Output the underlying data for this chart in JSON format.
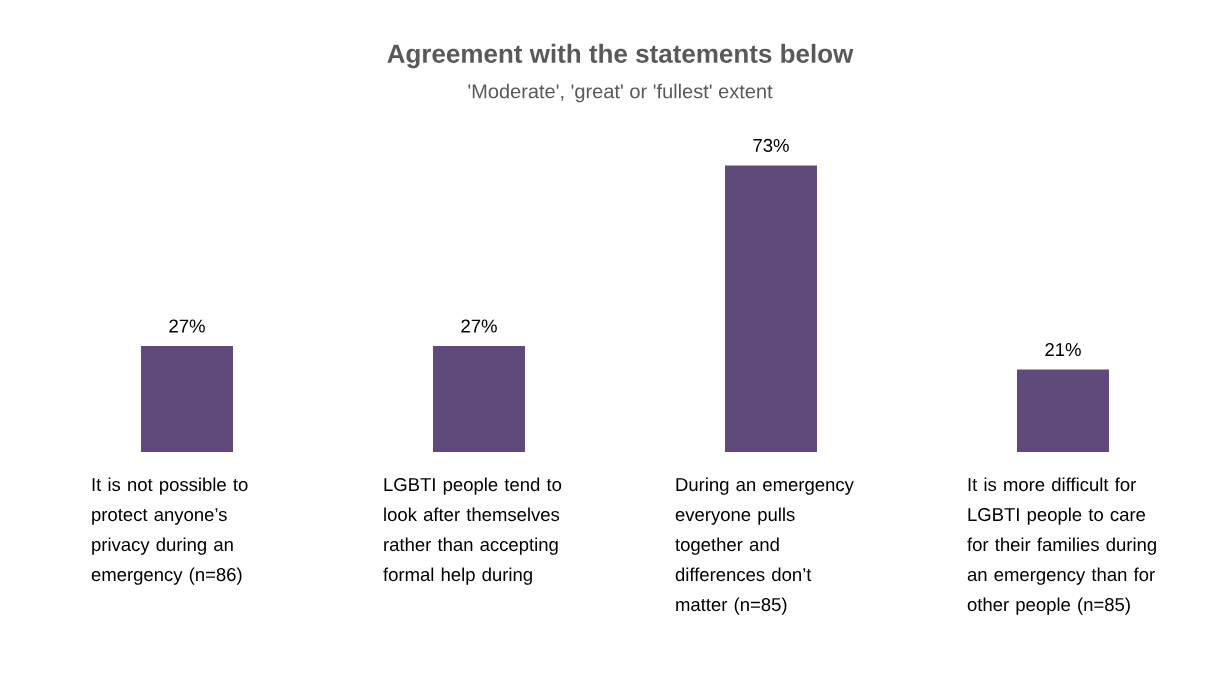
{
  "chart_data": {
    "type": "bar",
    "title": "Agreement with the statements below",
    "subtitle": "'Moderate', 'great' or 'fullest' extent",
    "categories": [
      "It is not possible to protect anyone’s privacy during an emergency (n=86)",
      "LGBTI people tend to look after themselves rather than accepting formal help during",
      "During an emergency everyone pulls together and differences don’t matter (n=85)",
      "It is more difficult for LGBTI people to care for their families during an emergency than for other people (n=85)"
    ],
    "values": [
      27,
      27,
      73,
      21
    ],
    "value_labels": [
      "27%",
      "27%",
      "73%",
      "21%"
    ],
    "color": "#604a7b"
  }
}
